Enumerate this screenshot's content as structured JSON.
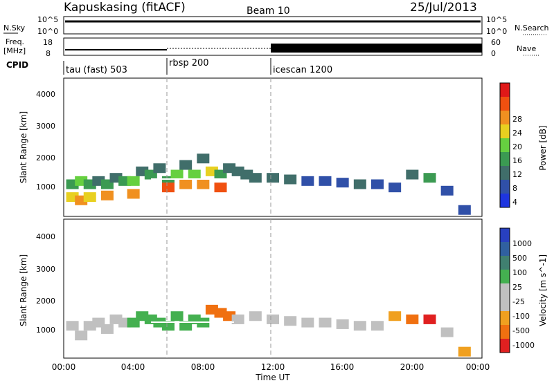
{
  "header": {
    "title": "Kapuskasing (fitACF)",
    "beam": "Beam 10",
    "date": "25/Jul/2013"
  },
  "noise_panel": {
    "left_label": "N.Sky",
    "left_ticks": [
      "10^5",
      "10^0"
    ],
    "right_ticks": [
      "10^5",
      "10^0"
    ],
    "right_label": "N.Search"
  },
  "freq_panel": {
    "left_label_1": "Freq.",
    "left_label_2": "[MHz]",
    "left_ticks": [
      "18",
      "8"
    ],
    "right_ticks": [
      "60",
      "0"
    ],
    "right_label": "Nave"
  },
  "cpid": {
    "label": "CPID",
    "segments": [
      {
        "name": "tau (fast) 503",
        "start_hour": 0
      },
      {
        "name": "rbsp 200",
        "start_hour": 6
      },
      {
        "name": "icescan 1200",
        "start_hour": 12
      }
    ]
  },
  "power_panel": {
    "ylabel": "Slant Range [km]",
    "yticks": [
      "4000",
      "3000",
      "2000",
      "1000"
    ],
    "colorbar_label": "Power [dB]",
    "colorbar_ticks": [
      "28",
      "24",
      "20",
      "16",
      "12",
      "8",
      "4"
    ],
    "colors": [
      "#1e35e0",
      "#3050a8",
      "#406e6a",
      "#3b9a52",
      "#66d040",
      "#e8d020",
      "#f09020",
      "#f05010",
      "#e01818"
    ]
  },
  "velocity_panel": {
    "ylabel": "Slant Range [km]",
    "yticks": [
      "4000",
      "3000",
      "2000",
      "1000"
    ],
    "colorbar_label": "Velocity [m s^-1]",
    "colorbar_ticks": [
      "1000",
      "500",
      "100",
      "25",
      "-25",
      "-100",
      "-500",
      "-1000"
    ],
    "colors": [
      "#2840c0",
      "#3060a0",
      "#408070",
      "#44b050",
      "#c0c0c0",
      "#c0c0c0",
      "#f0a020",
      "#f07010",
      "#e02020"
    ]
  },
  "x_axis": {
    "label": "Time UT",
    "ticks": [
      "00:00",
      "04:00",
      "08:00",
      "12:00",
      "16:00",
      "20:00",
      "00:00"
    ]
  },
  "chart_data": {
    "type": "heatmap",
    "title": "Kapuskasing (fitACF)",
    "xlabel": "Time UT",
    "ylabel": "Slant Range [km]",
    "xlim": [
      0,
      24
    ],
    "ylim": [
      200,
      4500
    ],
    "series": [
      {
        "name": "Power [dB]",
        "cells": [
          [
            0.5,
            1200,
            12
          ],
          [
            0.5,
            800,
            20
          ],
          [
            1.0,
            1300,
            16
          ],
          [
            1.0,
            700,
            24
          ],
          [
            1.5,
            1200,
            12
          ],
          [
            1.5,
            800,
            20
          ],
          [
            2.0,
            1300,
            8
          ],
          [
            2.5,
            1200,
            12
          ],
          [
            2.5,
            850,
            24
          ],
          [
            3.0,
            1400,
            8
          ],
          [
            3.5,
            1300,
            12
          ],
          [
            4.0,
            1300,
            16
          ],
          [
            4.0,
            900,
            24
          ],
          [
            4.5,
            1600,
            8
          ],
          [
            5.0,
            1500,
            12
          ],
          [
            5.5,
            1700,
            8
          ],
          [
            6.0,
            1300,
            12
          ],
          [
            6.0,
            1100,
            28
          ],
          [
            6.5,
            1500,
            16
          ],
          [
            7.0,
            1800,
            8
          ],
          [
            7.0,
            1200,
            24
          ],
          [
            7.5,
            1500,
            16
          ],
          [
            8.0,
            2000,
            8
          ],
          [
            8.0,
            1200,
            24
          ],
          [
            8.5,
            1600,
            20
          ],
          [
            9.0,
            1500,
            12
          ],
          [
            9.0,
            1100,
            28
          ],
          [
            9.5,
            1700,
            8
          ],
          [
            10.0,
            1600,
            8
          ],
          [
            10.5,
            1500,
            8
          ],
          [
            11.0,
            1400,
            8
          ],
          [
            12.0,
            1400,
            8
          ],
          [
            13.0,
            1350,
            8
          ],
          [
            14.0,
            1300,
            4
          ],
          [
            15.0,
            1300,
            4
          ],
          [
            16.0,
            1250,
            4
          ],
          [
            17.0,
            1200,
            8
          ],
          [
            18.0,
            1200,
            4
          ],
          [
            19.0,
            1100,
            4
          ],
          [
            20.0,
            1500,
            8
          ],
          [
            21.0,
            1400,
            12
          ],
          [
            22.0,
            1000,
            4
          ],
          [
            23.0,
            400,
            4
          ]
        ]
      },
      {
        "name": "Velocity [m s^-1]",
        "cells": [
          [
            0.5,
            1200,
            25
          ],
          [
            1.0,
            900,
            25
          ],
          [
            1.5,
            1200,
            25
          ],
          [
            2.0,
            1300,
            25
          ],
          [
            2.5,
            1100,
            25
          ],
          [
            3.0,
            1400,
            25
          ],
          [
            3.5,
            1300,
            25
          ],
          [
            4.0,
            1300,
            100
          ],
          [
            4.5,
            1500,
            100
          ],
          [
            5.0,
            1400,
            100
          ],
          [
            5.5,
            1300,
            100
          ],
          [
            6.0,
            1200,
            100
          ],
          [
            6.5,
            1500,
            100
          ],
          [
            7.0,
            1200,
            100
          ],
          [
            7.5,
            1400,
            100
          ],
          [
            8.0,
            1300,
            100
          ],
          [
            8.5,
            1700,
            -500
          ],
          [
            9.0,
            1600,
            -500
          ],
          [
            9.5,
            1500,
            -500
          ],
          [
            10.0,
            1400,
            25
          ],
          [
            11.0,
            1500,
            25
          ],
          [
            12.0,
            1400,
            25
          ],
          [
            13.0,
            1350,
            25
          ],
          [
            14.0,
            1300,
            25
          ],
          [
            15.0,
            1300,
            25
          ],
          [
            16.0,
            1250,
            25
          ],
          [
            17.0,
            1200,
            25
          ],
          [
            18.0,
            1200,
            25
          ],
          [
            19.0,
            1500,
            -100
          ],
          [
            20.0,
            1400,
            -500
          ],
          [
            21.0,
            1400,
            -1000
          ],
          [
            22.0,
            1000,
            25
          ],
          [
            23.0,
            400,
            -100
          ]
        ]
      }
    ]
  }
}
